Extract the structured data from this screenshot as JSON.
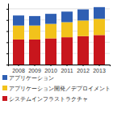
{
  "chart_data": {
    "type": "bar",
    "stacked": true,
    "categories": [
      "2008",
      "2009",
      "2010",
      "2011",
      "2012",
      "2013"
    ],
    "series": [
      {
        "name": "アプリケーション",
        "color": "#2f5fb3",
        "values": [
          18,
          17,
          18,
          19,
          20,
          21
        ]
      },
      {
        "name": "アプリケーション開発／デプロイメント",
        "color": "#f2c21b",
        "values": [
          25,
          25,
          26,
          27,
          28,
          29
        ]
      },
      {
        "name": "システムインフラストラクチャ",
        "color": "#c8161d",
        "values": [
          45,
          45,
          47,
          49,
          51,
          53
        ]
      }
    ],
    "ylim": [
      0,
      110
    ],
    "yticks": [
      0,
      20,
      40,
      60,
      80,
      100
    ],
    "grid": true,
    "tick_labels": "x",
    "legend": "bottom"
  }
}
